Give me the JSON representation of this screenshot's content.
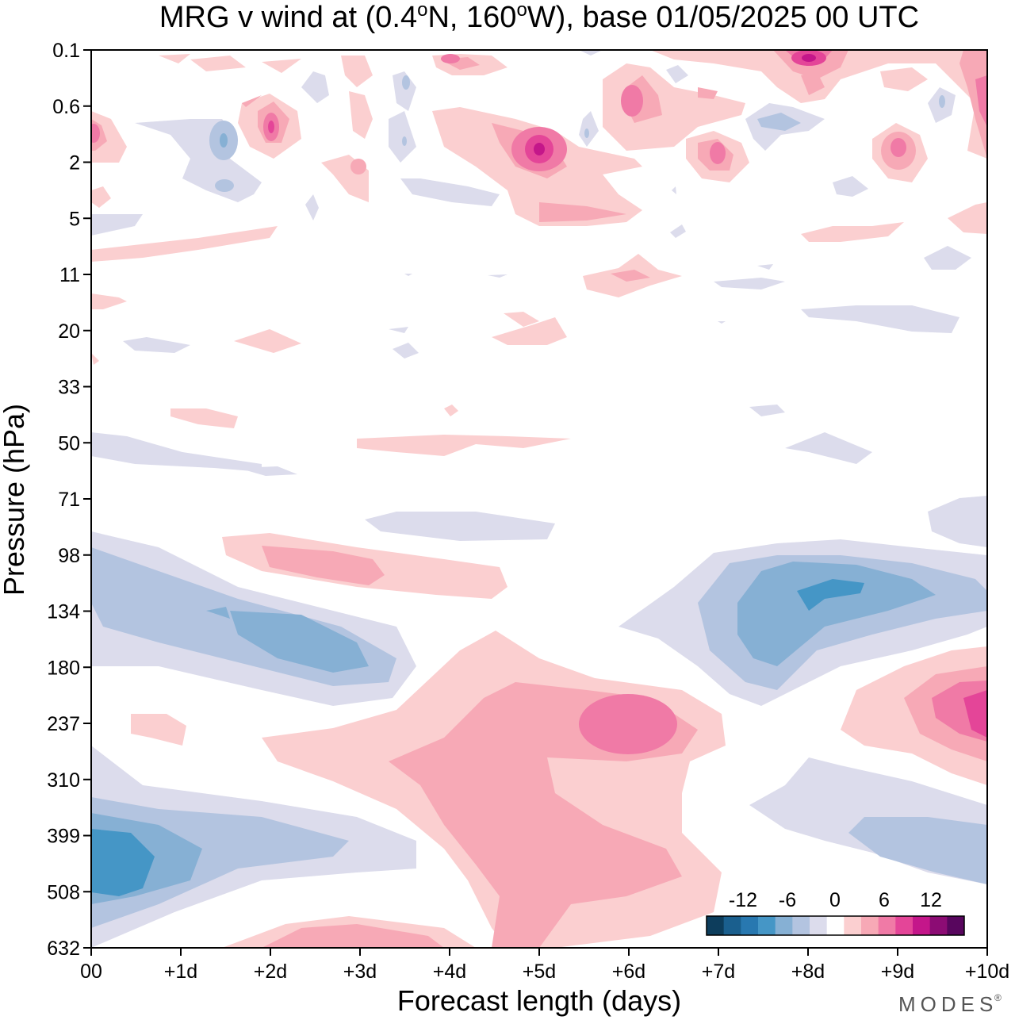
{
  "chart_data": {
    "type": "heatmap",
    "title": "MRG v wind at (0.4°N, 160°W),  base 01/05/2025  00 UTC",
    "title_parts": [
      "MRG v wind at (0.4",
      "o",
      "N, 160",
      "o",
      "W),  base 01/05/2025  00 UTC"
    ],
    "xlabel": "Forecast length (days)",
    "ylabel": "Pressure (hPa)",
    "x_ticks": [
      "00",
      "+1d",
      "+2d",
      "+3d",
      "+4d",
      "+5d",
      "+6d",
      "+7d",
      "+8d",
      "+9d",
      "+10d"
    ],
    "xlim": [
      0,
      10
    ],
    "y_ticks": [
      "0.1",
      "0.6",
      "2",
      "5",
      "11",
      "20",
      "33",
      "50",
      "71",
      "98",
      "134",
      "180",
      "237",
      "310",
      "399",
      "508",
      "632"
    ],
    "y_scale": "pressure (log-like, inverted)",
    "colorbar": {
      "tick_labels": [
        "-12",
        "-6",
        "0",
        "6",
        "12"
      ],
      "levels": [
        -14,
        -12,
        -10,
        -8,
        -6,
        -4,
        -2,
        0,
        2,
        4,
        6,
        8,
        10,
        12,
        14
      ],
      "colors": [
        "#0d3d5c",
        "#1a5f8e",
        "#2878b0",
        "#4596c6",
        "#86b0d4",
        "#b3c4e0",
        "#dcdcec",
        "#ffffff",
        "#fbcfd0",
        "#f7a9b6",
        "#f07aa6",
        "#e44598",
        "#c4168a",
        "#8c0c74",
        "#58065e"
      ]
    },
    "features": [
      {
        "name": "negative lower-left",
        "x": 0.3,
        "p": 450,
        "value": -10
      },
      {
        "name": "negative 134hPa left",
        "x": 3.0,
        "p": 160,
        "value": -8
      },
      {
        "name": "positive 98hPa",
        "x": 2.5,
        "p": 105,
        "value": 4
      },
      {
        "name": "positive lower middle",
        "x": 5.0,
        "p": 300,
        "value": 4
      },
      {
        "name": "positive 237hPa",
        "x": 6.0,
        "p": 230,
        "value": 8
      },
      {
        "name": "negative 134hPa right",
        "x": 8.5,
        "p": 125,
        "value": -10
      },
      {
        "name": "positive 237hPa right",
        "x": 10.0,
        "p": 220,
        "value": 10
      },
      {
        "name": "negative lower right",
        "x": 9.5,
        "p": 440,
        "value": -6
      },
      {
        "name": "positive 0.1hPa",
        "x": 8.0,
        "p": 0.1,
        "value": 12
      },
      {
        "name": "positive 2hPa",
        "x": 5.0,
        "p": 1.5,
        "value": 12
      }
    ]
  },
  "watermark": "MODES"
}
